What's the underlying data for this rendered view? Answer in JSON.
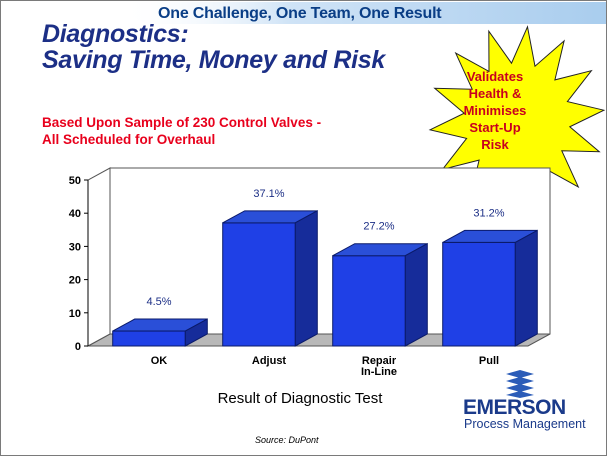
{
  "banner": {
    "text": "One Challenge, One Team, One Result"
  },
  "title": {
    "line1": "Diagnostics:",
    "line2": "Saving Time, Money and Risk"
  },
  "subtitle": {
    "line1": "Based Upon Sample of 230 Control Valves -",
    "line2": "All Scheduled for Overhaul"
  },
  "callout": {
    "lines": [
      "Validates",
      "Health &",
      "Minimises",
      "Start-Up",
      "Risk"
    ],
    "fill_color": "#ffff00",
    "text_color": "#c8001e"
  },
  "chart_data": {
    "type": "bar",
    "categories": [
      [
        "OK"
      ],
      [
        "Adjust"
      ],
      [
        "Repair",
        "In-Line"
      ],
      [
        "Pull"
      ]
    ],
    "values": [
      4.5,
      37.1,
      27.2,
      31.2
    ],
    "data_labels": [
      "4.5%",
      "37.1%",
      "27.2%",
      "31.2%"
    ],
    "xlabel": "Result of Diagnostic Test",
    "ylabel": "",
    "ylim": [
      0,
      50
    ],
    "yticks": [
      0,
      10,
      20,
      30,
      40,
      50
    ],
    "bar_color": "#1f40e6",
    "grid": false,
    "style": "3d"
  },
  "logo": {
    "name": "EMERSON",
    "subtitle": "Process Management",
    "icon": "emerson-logo-icon"
  },
  "source": {
    "text": "Source: DuPont"
  },
  "colors": {
    "title": "#1c2f86",
    "subtitle": "#e8001c",
    "banner": "#0a3e86",
    "brand": "#1a3a8a"
  }
}
